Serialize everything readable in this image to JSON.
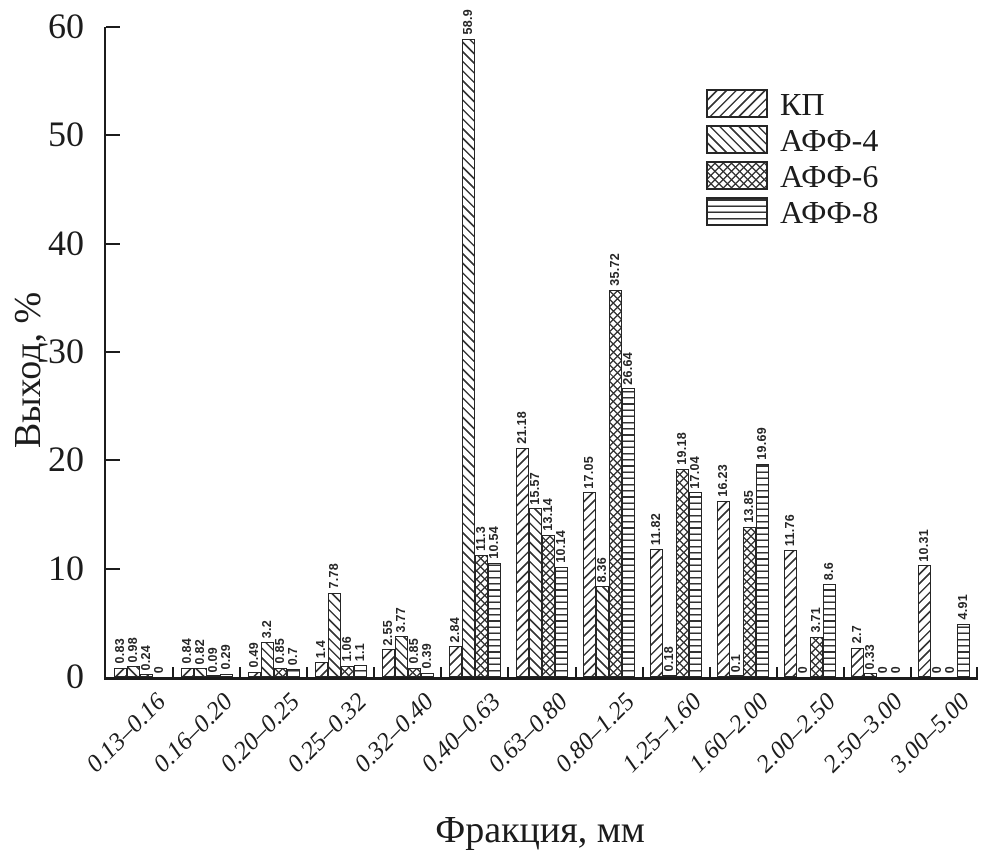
{
  "chart_data": {
    "type": "bar",
    "title": "",
    "xlabel": "Фракция, мм",
    "ylabel": "Выход, %",
    "ylim": [
      0,
      60
    ],
    "yticks": [
      0,
      10,
      20,
      30,
      40,
      50,
      60
    ],
    "grid": false,
    "legend_position": "top-right",
    "bar_value_labels": true,
    "categories": [
      "0.13–0.16",
      "0.16–0.20",
      "0.20–0.25",
      "0.25–0.32",
      "0.32–0.40",
      "0.40–0.63",
      "0.63–0.80",
      "0.80–1.25",
      "1.25–1.60",
      "1.60–2.00",
      "2.00–2.50",
      "2.50–3.00",
      "3.00–5.00"
    ],
    "series": [
      {
        "name": "КП",
        "pattern": "diagonal-forward",
        "values": [
          0.83,
          0.84,
          0.49,
          1.4,
          2.55,
          2.84,
          21.18,
          17.05,
          11.82,
          16.23,
          11.76,
          2.7,
          10.31
        ]
      },
      {
        "name": "АФФ-4",
        "pattern": "diagonal-backward",
        "values": [
          0.98,
          0.82,
          3.2,
          7.78,
          3.77,
          58.9,
          15.57,
          8.36,
          0.18,
          0.1,
          0,
          0.33,
          0
        ]
      },
      {
        "name": "АФФ-6",
        "pattern": "crosshatch",
        "values": [
          0.24,
          0.09,
          0.85,
          1.06,
          0.85,
          11.3,
          13.14,
          35.72,
          19.18,
          13.85,
          3.71,
          0,
          0
        ]
      },
      {
        "name": "АФФ-8",
        "pattern": "horizontal-lines",
        "values": [
          0,
          0.29,
          0.7,
          1.1,
          0.39,
          10.54,
          10.14,
          26.64,
          17.04,
          19.69,
          8.6,
          0,
          4.91
        ]
      }
    ],
    "colors": {
      "ink": "#1c1c1c",
      "background": "#ffffff"
    }
  }
}
